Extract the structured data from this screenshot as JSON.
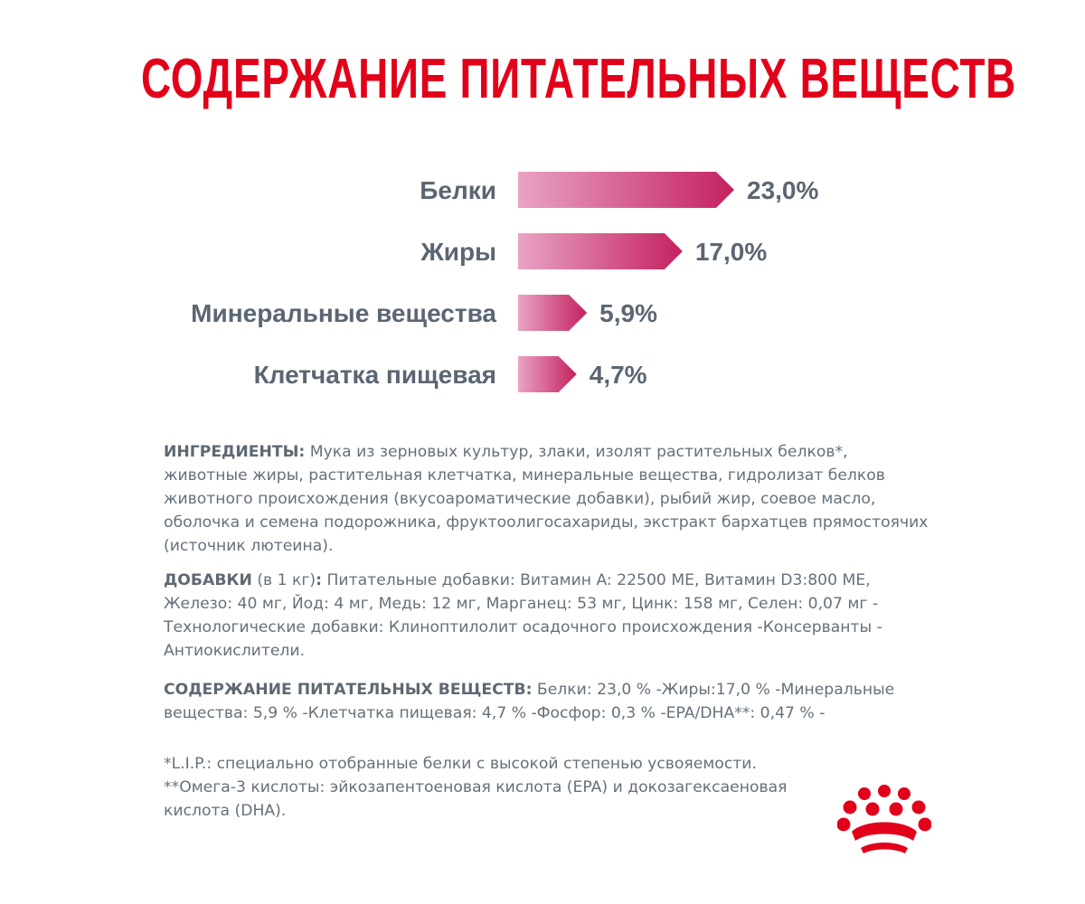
{
  "title": "СОДЕРЖАНИЕ ПИТАТЕЛЬНЫХ ВЕЩЕСТВ",
  "colors": {
    "title": "#e2001a",
    "bar_start": "#e9a3c4",
    "bar_end": "#c4215f",
    "text": "#5b6672",
    "logo": "#e2001a"
  },
  "chart_data": {
    "type": "bar",
    "orientation": "horizontal",
    "categories": [
      "Белки",
      "Жиры",
      "Минеральные вещества",
      "Клетчатка пищевая"
    ],
    "values": [
      23.0,
      17.0,
      5.9,
      4.7
    ],
    "value_labels": [
      "23,0%",
      "17,0%",
      "5,9%",
      "4,7%"
    ],
    "xlim": [
      0,
      23.0
    ]
  },
  "ingredients": {
    "heading": "ИНГРЕДИЕНТЫ:",
    "text": " Мука из зерновых культур, злаки, изолят растительных белков*, животные жиры, растительная клетчатка, минеральные вещества, гидролизат белков животного происхождения (вкусоароматические добавки), рыбий жир, соевое масло, оболочка и семена подорожника, фруктоолигосахариды, экстракт бархатцев прямостоячих (источник лютеина)."
  },
  "additives": {
    "heading": "ДОБАВКИ",
    "unit": " (в 1 кг)",
    "colon": ":",
    "text": " Питательные добавки: Витамин A: 22500 МЕ, Витамин D3:800 МЕ, Железо: 40 мг, Йод: 4 мг, Медь: 12 мг, Марганец: 53 мг, Цинк: 158 мг, Селен: 0,07 мг - Технологические добавки: Клиноптилолит осадочного происхождения -Консерванты - Антиокислители."
  },
  "nutrients": {
    "heading": "СОДЕРЖАНИЕ ПИТАТЕЛЬНЫХ ВЕЩЕСТВ:",
    "text": " Белки: 23,0 % -Жиры:17,0 % -Минеральные вещества: 5,9 % -Клетчатка пищевая: 4,7 % -Фосфор: 0,3 % -EPA/DHA**: 0,47 % -"
  },
  "footnotes": [
    "*L.I.P.: специально отобранные белки с высокой степенью усвояемости.",
    "**Омега-3 кислоты: эйкозапентоеновая кислота (EPA) и докозагексаеновая кислота (DHA)."
  ],
  "logo": {
    "icon": "royal-canin-crown-icon"
  }
}
